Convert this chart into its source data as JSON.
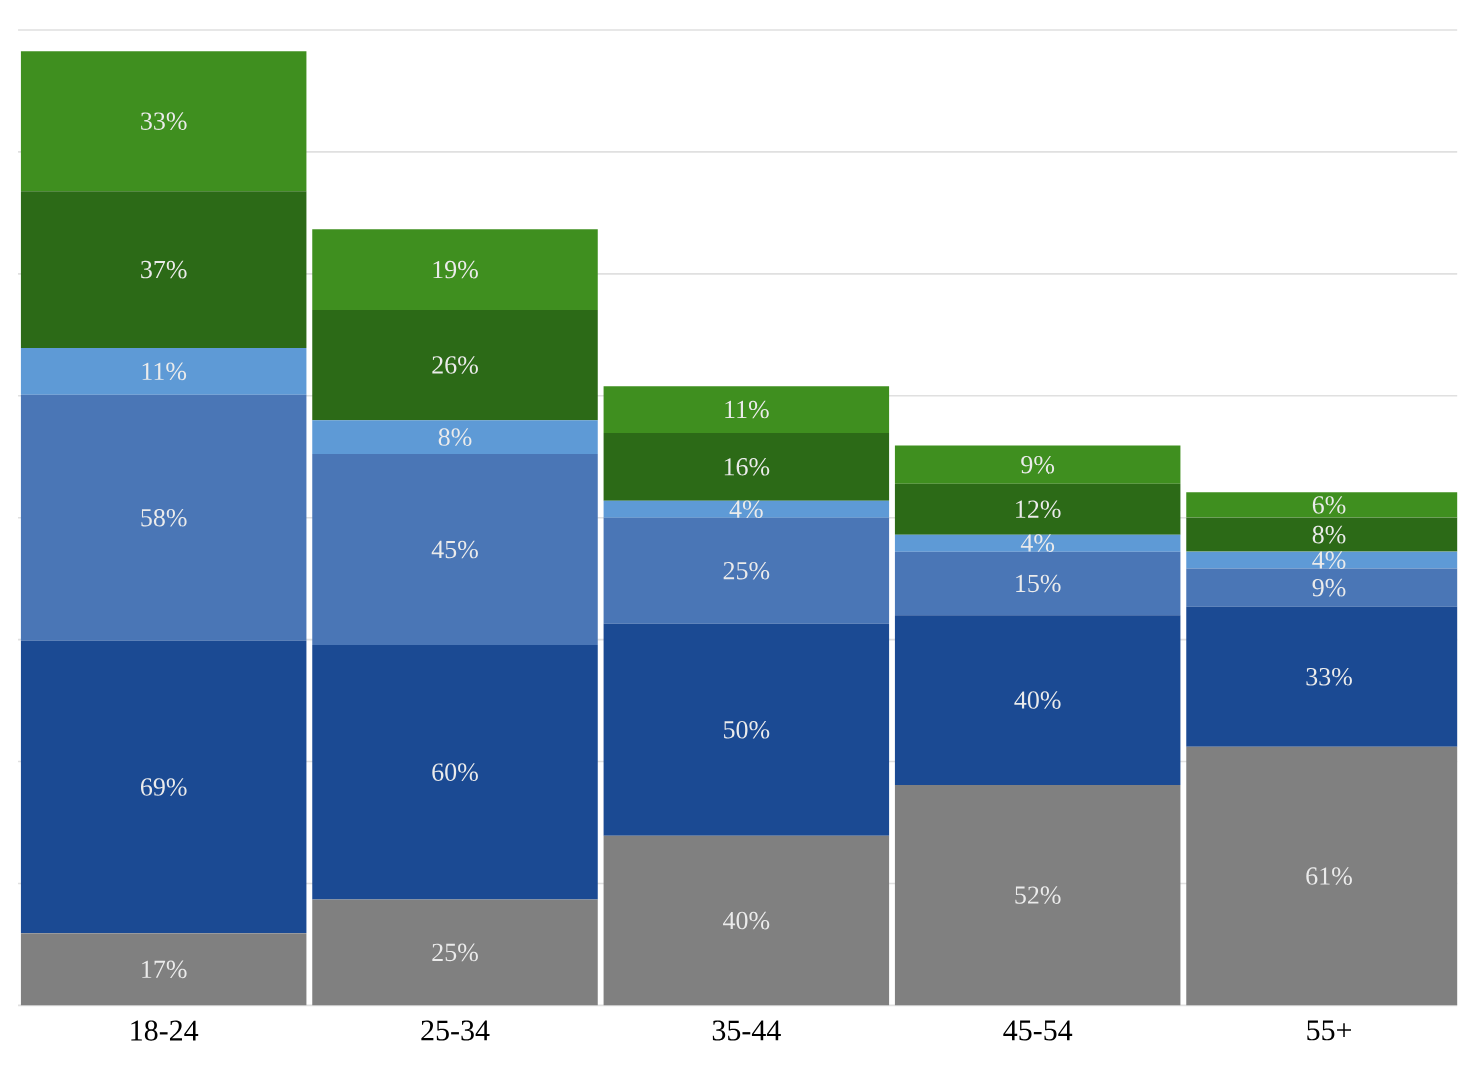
{
  "chart_data": {
    "type": "bar",
    "stacked": true,
    "categories": [
      "18-24",
      "25-34",
      "35-44",
      "45-54",
      "55+"
    ],
    "series": [
      {
        "color": "#808080",
        "values": [
          17,
          25,
          40,
          52,
          61
        ],
        "value_labels": [
          "17%",
          "25%",
          "40%",
          "52%",
          "61%"
        ]
      },
      {
        "color": "#1b4a93",
        "values": [
          69,
          60,
          50,
          40,
          33
        ],
        "value_labels": [
          "69%",
          "60%",
          "50%",
          "40%",
          "33%"
        ]
      },
      {
        "color": "#4a76b6",
        "values": [
          58,
          45,
          25,
          15,
          9
        ],
        "value_labels": [
          "58%",
          "45%",
          "25%",
          "15%",
          "9%"
        ]
      },
      {
        "color": "#5e9ad6",
        "values": [
          11,
          8,
          4,
          4,
          4
        ],
        "value_labels": [
          "11%",
          "8%",
          "4%",
          "4%",
          "4%"
        ]
      },
      {
        "color": "#2c6a17",
        "values": [
          37,
          26,
          16,
          12,
          8
        ],
        "value_labels": [
          "37%",
          "26%",
          "16%",
          "12%",
          "8%"
        ]
      },
      {
        "color": "#3f8f1f",
        "values": [
          33,
          19,
          11,
          9,
          6
        ],
        "value_labels": [
          "33%",
          "19%",
          "11%",
          "9%",
          "6%"
        ]
      }
    ],
    "ylim": [
      0,
      230
    ],
    "yticks": [
      {
        "value": 0,
        "label": null
      },
      {
        "value": 28.75,
        "label": null
      },
      {
        "value": 57.5,
        "label": null
      },
      {
        "value": 86.25,
        "label": null
      },
      {
        "value": 115,
        "label": null
      },
      {
        "value": 143.75,
        "label": null
      },
      {
        "value": 172.5,
        "label": null
      },
      {
        "value": 201.25,
        "label": null
      },
      {
        "value": 230,
        "label": null
      }
    ],
    "tick_labels": "x",
    "grid": "y"
  }
}
